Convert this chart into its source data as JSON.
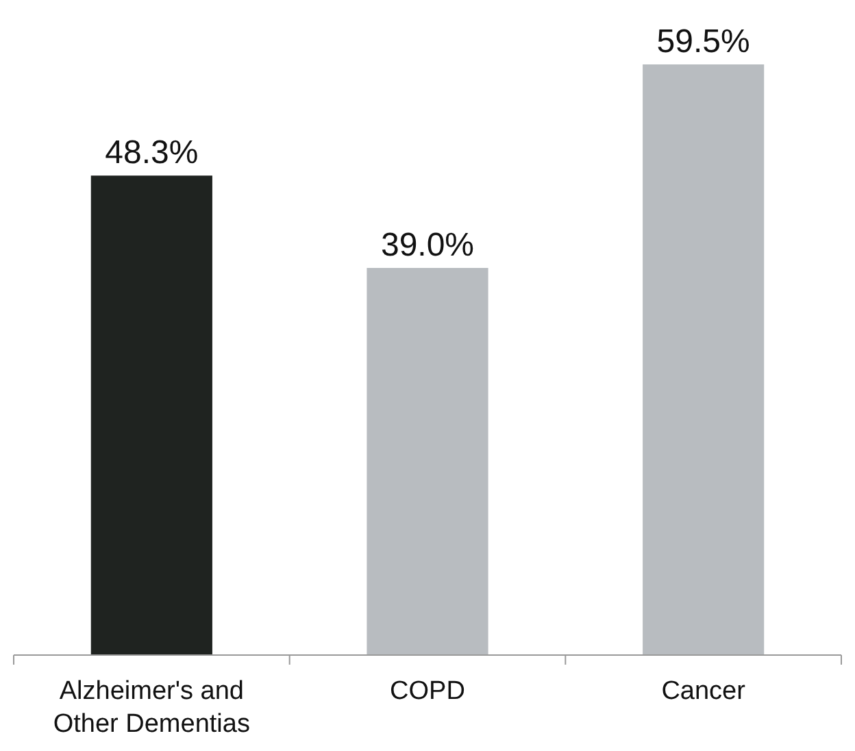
{
  "chart_data": {
    "type": "bar",
    "categories": [
      "Alzheimer's and Other Dementias",
      "COPD",
      "Cancer"
    ],
    "values": [
      48.3,
      39.0,
      59.5
    ],
    "colors": [
      "#1f2320",
      "#b8bcc0",
      "#b8bcc0"
    ],
    "value_labels": [
      "48.3%",
      "39.0%",
      "59.5%"
    ]
  }
}
